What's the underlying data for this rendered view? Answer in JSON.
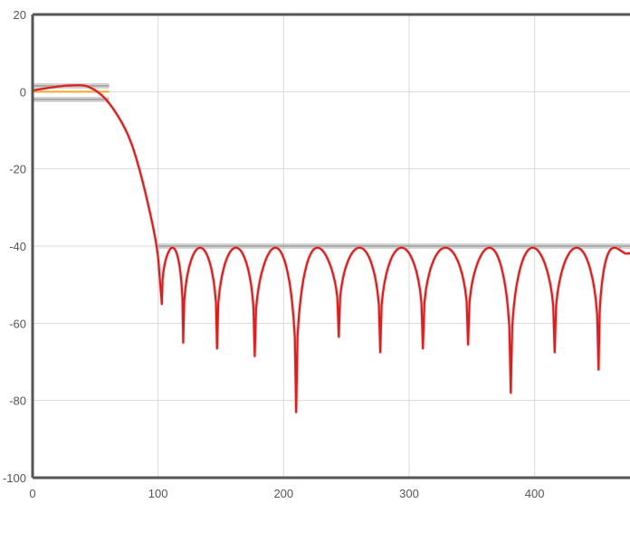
{
  "chart_data": {
    "type": "line",
    "title": "",
    "xlabel": "",
    "ylabel": "",
    "xlim": [
      0,
      476
    ],
    "ylim": [
      -100,
      20
    ],
    "grid": true,
    "x_ticks": [
      0,
      100,
      200,
      300,
      400
    ],
    "y_ticks": [
      20,
      0,
      -20,
      -40,
      -60,
      -80,
      -100
    ],
    "x_tick_labels": [
      "0",
      "100",
      "200",
      "300",
      "400"
    ],
    "y_tick_labels": [
      "20",
      "0",
      "-20",
      "-40",
      "-60",
      "-80",
      "-100"
    ],
    "series": [
      {
        "color": "#e21c1c",
        "x": [
          0,
          15,
          30,
          45,
          60,
          75,
          85,
          95,
          100,
          103,
          110,
          120,
          133,
          147,
          162,
          177,
          193,
          210,
          227,
          244,
          260,
          277,
          294,
          311,
          328,
          347,
          364,
          381,
          398,
          416,
          433,
          451,
          468,
          476
        ],
        "y": [
          0.3,
          1.1,
          1.6,
          1.2,
          -2.6,
          -10.5,
          -20,
          -33.5,
          -43,
          -55,
          -40.4,
          -65,
          -40.4,
          -66.5,
          -40.4,
          -68.5,
          -40.4,
          -83,
          -40.4,
          -63.5,
          -40.4,
          -67.5,
          -40.4,
          -66.5,
          -40.4,
          -65.5,
          -40.4,
          -78,
          -40.4,
          -67.5,
          -40.4,
          -72,
          -40.4,
          -42
        ]
      }
    ],
    "mask_bands": [
      {
        "name": "passband",
        "x": [
          0,
          61
        ],
        "y_upper": 1.5,
        "y_lower": -2,
        "color": "#9e9e9e"
      },
      {
        "name": "stopband",
        "x": [
          100,
          476
        ],
        "y_upper": -40,
        "color": "#9e9e9e"
      }
    ],
    "reference_lines": [
      {
        "x": [
          0,
          61
        ],
        "y": 0,
        "color": "#f5a623"
      }
    ]
  }
}
